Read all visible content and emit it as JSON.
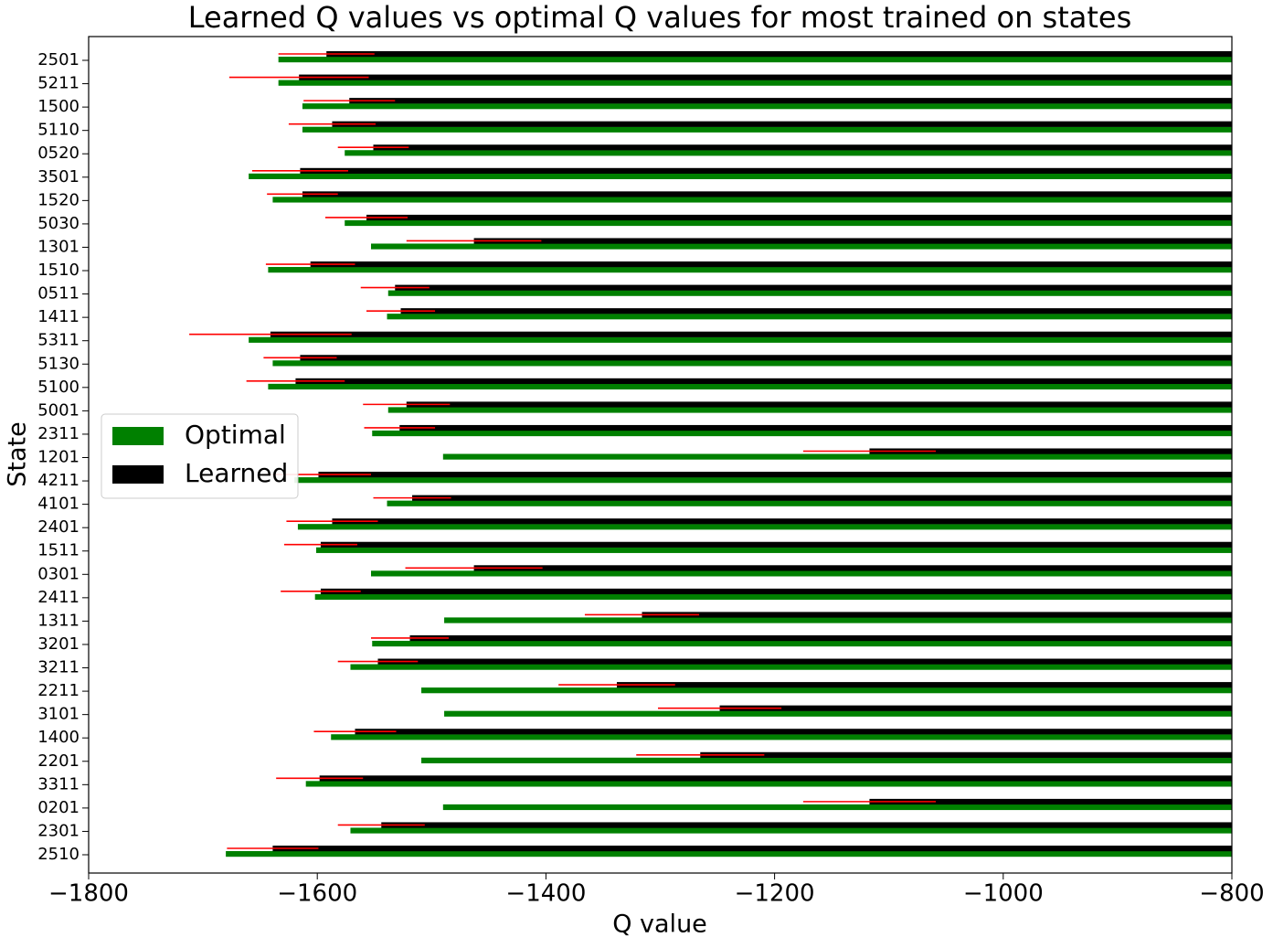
{
  "chart_data": {
    "type": "barh",
    "title": "Learned Q values vs optimal Q values for most trained on states",
    "xlabel": "Q value",
    "ylabel": "State",
    "categories": [
      "2501",
      "5211",
      "1500",
      "5110",
      "0520",
      "3501",
      "1520",
      "5030",
      "1301",
      "1510",
      "0511",
      "1411",
      "5311",
      "5130",
      "5100",
      "5001",
      "2311",
      "1201",
      "4211",
      "4101",
      "2401",
      "1511",
      "0301",
      "2411",
      "1311",
      "3201",
      "3211",
      "2211",
      "3101",
      "1400",
      "2201",
      "3311",
      "0201",
      "2301",
      "2510"
    ],
    "series": [
      {
        "name": "Optimal",
        "color": "#008000",
        "values": [
          -1634,
          -1634,
          -1613,
          -1613,
          -1576,
          -1660,
          -1639,
          -1576,
          -1553,
          -1643,
          -1538,
          -1539,
          -1660,
          -1639,
          -1643,
          -1538,
          -1552,
          -1490,
          -1620,
          -1539,
          -1617,
          -1601,
          -1553,
          -1602,
          -1489,
          -1552,
          -1571,
          -1509,
          -1489,
          -1588,
          -1509,
          -1610,
          -1490,
          -1571,
          -1680
        ]
      },
      {
        "name": "Learned",
        "color": "#000000",
        "error_color": "#ff0000",
        "values": [
          -1592,
          -1616,
          -1572,
          -1587,
          -1551,
          -1615,
          -1613,
          -1557,
          -1463,
          -1606,
          -1532,
          -1527,
          -1641,
          -1615,
          -1619,
          -1522,
          -1528,
          -1117,
          -1599,
          -1517,
          -1587,
          -1597,
          -1463,
          -1597,
          -1316,
          -1519,
          -1547,
          -1338,
          -1248,
          -1567,
          -1265,
          -1598,
          -1117,
          -1544,
          -1639
        ],
        "errors": [
          42,
          61,
          40,
          38,
          31,
          42,
          31,
          36,
          59,
          39,
          30,
          30,
          71,
          32,
          43,
          38,
          31,
          58,
          46,
          34,
          40,
          32,
          60,
          35,
          50,
          34,
          35,
          51,
          54,
          36,
          56,
          38,
          58,
          38,
          40
        ]
      }
    ],
    "xlim": [
      -1800,
      -800
    ],
    "xticks": [
      {
        "value": -1800,
        "label": "−1800"
      },
      {
        "value": -1600,
        "label": "−1600"
      },
      {
        "value": -1400,
        "label": "−1400"
      },
      {
        "value": -1200,
        "label": "−1200"
      },
      {
        "value": -1000,
        "label": "−1000"
      },
      {
        "value": -800,
        "label": "−800"
      }
    ],
    "legend": "center left",
    "grid": false
  }
}
